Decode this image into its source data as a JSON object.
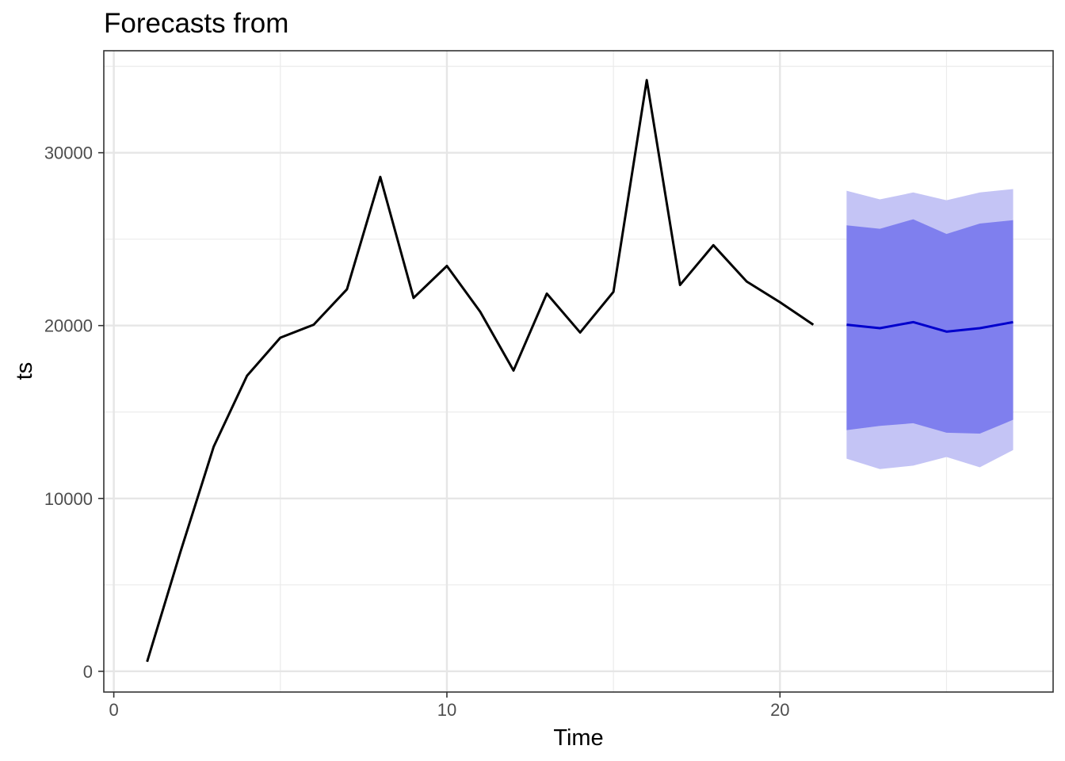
{
  "chart_data": {
    "type": "line",
    "title": "Forecasts from",
    "xlabel": "Time",
    "ylabel": "ts",
    "xlim": [
      -0.3,
      28.2
    ],
    "ylim": [
      -1200,
      35900
    ],
    "x_ticks": [
      0,
      10,
      20
    ],
    "x_tick_labels": [
      "0",
      "10",
      "20"
    ],
    "x_minor_ticks": [
      5,
      15,
      25
    ],
    "y_ticks": [
      0,
      10000,
      20000,
      30000
    ],
    "y_tick_labels": [
      "0",
      "10000",
      "20000",
      "30000"
    ],
    "y_minor_ticks": [
      5000,
      15000,
      25000,
      35000
    ],
    "grid": true,
    "series": [
      {
        "role": "observed",
        "color": "#000000",
        "x": [
          1,
          2,
          3,
          4,
          5,
          6,
          7,
          8,
          9,
          10,
          11,
          12,
          13,
          14,
          15,
          16,
          17,
          18,
          19,
          20,
          21
        ],
        "values": [
          550,
          6900,
          13000,
          17100,
          19300,
          20050,
          22100,
          28600,
          21600,
          23450,
          20800,
          17400,
          21850,
          19600,
          21950,
          34200,
          22350,
          24650,
          22550,
          21350,
          20050
        ]
      },
      {
        "role": "forecast",
        "color": "#0000cc",
        "x": [
          22,
          23,
          24,
          25,
          26,
          27
        ],
        "values": [
          20050,
          19850,
          20200,
          19650,
          19850,
          20200
        ]
      }
    ],
    "intervals": [
      {
        "level": "95",
        "color": "#c4c4f5",
        "x": [
          22,
          23,
          24,
          25,
          26,
          27
        ],
        "lower": [
          12300,
          11700,
          11900,
          12400,
          11800,
          12800
        ],
        "upper": [
          27800,
          27300,
          27700,
          27250,
          27700,
          27900
        ]
      },
      {
        "level": "80",
        "color": "#7f7fee",
        "x": [
          22,
          23,
          24,
          25,
          26,
          27
        ],
        "lower": [
          13950,
          14200,
          14350,
          13800,
          13750,
          14550
        ],
        "upper": [
          25800,
          25600,
          26150,
          25300,
          25900,
          26100
        ]
      }
    ]
  }
}
